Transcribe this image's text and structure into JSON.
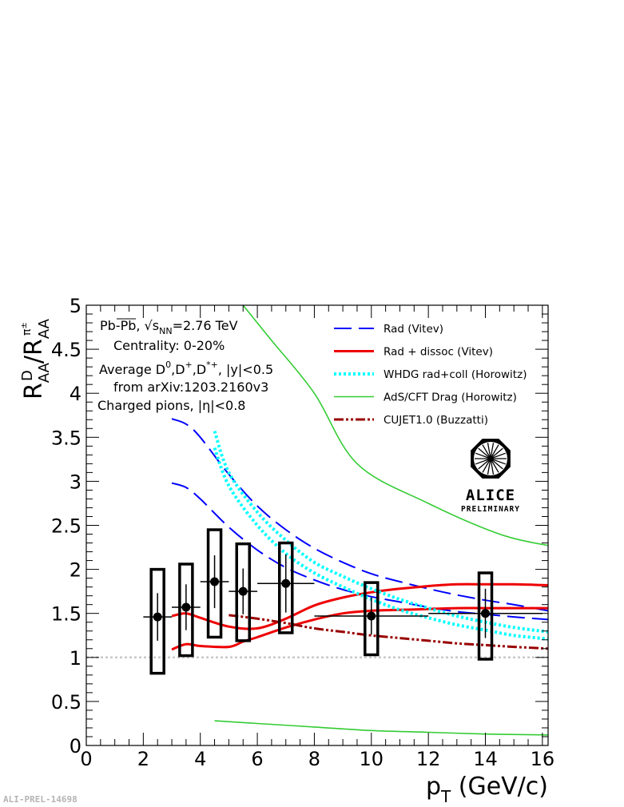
{
  "chart_data": {
    "type": "scatter",
    "xlabel": "p_T (GeV/c)",
    "xlabel_main": "p",
    "xlabel_sub": "T",
    "xlabel_unit": " (GeV/c)",
    "ylabel": "R_AA^D / R_AA^π±",
    "xlim": [
      0,
      16.2
    ],
    "ylim": [
      0,
      5
    ],
    "x_ticks": [
      0,
      2,
      4,
      6,
      8,
      10,
      12,
      14,
      16
    ],
    "y_ticks": [
      0,
      0.5,
      1,
      1.5,
      2,
      2.5,
      3,
      3.5,
      4,
      4.5,
      5
    ],
    "y_tick_labels": [
      "0",
      "0.5",
      "1",
      "1.5",
      "2",
      "2.5",
      "3",
      "3.5",
      "4",
      "4.5",
      "5"
    ],
    "reference_line": {
      "y": 1,
      "color": "#c8c8c8"
    },
    "info_lines": [
      "Pb-Pb, √s",
      "NN",
      "=2.76 TeV",
      "Centrality: 0-20%",
      "Average D",
      "0",
      ",D",
      "+",
      ",D",
      "*+",
      ", |y|<0.5",
      "from arXiv:1203.2160v3",
      "Charged pions, |η|<0.8"
    ],
    "data_points": {
      "name": "ALICE data",
      "points": [
        {
          "x": 2.5,
          "y": 1.46,
          "xerr": 0.5,
          "stat": 0.27,
          "sys_low": 0.82,
          "sys_high": 2.0
        },
        {
          "x": 3.5,
          "y": 1.57,
          "xerr": 0.5,
          "stat": 0.26,
          "sys_low": 1.02,
          "sys_high": 2.06
        },
        {
          "x": 4.5,
          "y": 1.86,
          "xerr": 0.5,
          "stat": 0.3,
          "sys_low": 1.23,
          "sys_high": 2.45
        },
        {
          "x": 5.5,
          "y": 1.75,
          "xerr": 0.5,
          "stat": 0.26,
          "sys_low": 1.19,
          "sys_high": 2.29
        },
        {
          "x": 7.0,
          "y": 1.84,
          "xerr": 1.0,
          "stat": 0.33,
          "sys_low": 1.28,
          "sys_high": 2.3
        },
        {
          "x": 10.0,
          "y": 1.47,
          "xerr": 2.0,
          "stat": 0.21,
          "sys_low": 1.03,
          "sys_high": 1.85
        },
        {
          "x": 14.0,
          "y": 1.5,
          "xerr": 2.0,
          "stat": 0.28,
          "sys_low": 0.98,
          "sys_high": 1.96
        }
      ]
    },
    "series": [
      {
        "name": "Rad (Vitev)",
        "color": "#0000ff",
        "style": "dashed",
        "curves": [
          [
            [
              3,
              3.71
            ],
            [
              3.5,
              3.65
            ],
            [
              4,
              3.5
            ],
            [
              5,
              3.08
            ],
            [
              6,
              2.72
            ],
            [
              7,
              2.45
            ],
            [
              8,
              2.24
            ],
            [
              9,
              2.08
            ],
            [
              10,
              1.95
            ],
            [
              11,
              1.86
            ],
            [
              12,
              1.78
            ],
            [
              13,
              1.71
            ],
            [
              14,
              1.65
            ],
            [
              15,
              1.6
            ],
            [
              16.2,
              1.53
            ]
          ],
          [
            [
              3,
              2.98
            ],
            [
              3.5,
              2.93
            ],
            [
              4,
              2.8
            ],
            [
              5,
              2.48
            ],
            [
              6,
              2.22
            ],
            [
              7,
              2.02
            ],
            [
              8,
              1.88
            ],
            [
              9,
              1.77
            ],
            [
              10,
              1.69
            ],
            [
              11,
              1.63
            ],
            [
              12,
              1.57
            ],
            [
              13,
              1.52
            ],
            [
              14,
              1.49
            ],
            [
              15,
              1.46
            ],
            [
              16.2,
              1.43
            ]
          ]
        ]
      },
      {
        "name": "Rad + dissoc (Vitev)",
        "color": "#ee0000",
        "style": "solid",
        "curves": [
          [
            [
              3,
              1.47
            ],
            [
              3.5,
              1.5
            ],
            [
              4,
              1.45
            ],
            [
              5,
              1.35
            ],
            [
              6,
              1.33
            ],
            [
              7,
              1.44
            ],
            [
              8,
              1.59
            ],
            [
              9,
              1.68
            ],
            [
              10,
              1.74
            ],
            [
              11,
              1.78
            ],
            [
              12,
              1.81
            ],
            [
              13,
              1.83
            ],
            [
              14,
              1.83
            ],
            [
              15,
              1.83
            ],
            [
              16.2,
              1.82
            ]
          ],
          [
            [
              3,
              1.09
            ],
            [
              3.5,
              1.15
            ],
            [
              4,
              1.13
            ],
            [
              5,
              1.12
            ],
            [
              5.5,
              1.18
            ],
            [
              6,
              1.23
            ],
            [
              7,
              1.34
            ],
            [
              8,
              1.43
            ],
            [
              9,
              1.5
            ],
            [
              10,
              1.53
            ],
            [
              11,
              1.54
            ],
            [
              12,
              1.55
            ],
            [
              13,
              1.56
            ],
            [
              14,
              1.56
            ],
            [
              16.2,
              1.56
            ]
          ]
        ]
      },
      {
        "name": "WHDG rad+coll (Horowitz)",
        "color": "#00ffff",
        "style": "dotted",
        "curves": [
          [
            [
              4.5,
              3.57
            ],
            [
              5,
              3.1
            ],
            [
              6,
              2.65
            ],
            [
              7,
              2.33
            ],
            [
              8,
              2.08
            ],
            [
              9,
              1.92
            ],
            [
              10,
              1.78
            ],
            [
              11,
              1.66
            ],
            [
              12,
              1.56
            ],
            [
              13,
              1.47
            ],
            [
              14,
              1.4
            ],
            [
              15,
              1.34
            ],
            [
              16.2,
              1.29
            ]
          ],
          [
            [
              4.5,
              3.38
            ],
            [
              5,
              2.95
            ],
            [
              6,
              2.5
            ],
            [
              7,
              2.18
            ],
            [
              8,
              1.96
            ],
            [
              9,
              1.8
            ],
            [
              10,
              1.66
            ],
            [
              11,
              1.54
            ],
            [
              12,
              1.45
            ],
            [
              13,
              1.37
            ],
            [
              14,
              1.31
            ],
            [
              15,
              1.25
            ],
            [
              16.2,
              1.21
            ]
          ]
        ]
      },
      {
        "name": "AdS/CFT Drag (Horowitz)",
        "color": "#33cc33",
        "style": "thin",
        "curves": [
          [
            [
              5.5,
              5.0
            ],
            [
              6.5,
              4.6
            ],
            [
              8,
              4.0
            ],
            [
              9.5,
              3.2
            ],
            [
              12,
              2.75
            ],
            [
              14.5,
              2.4
            ],
            [
              16.2,
              2.27
            ]
          ],
          [
            [
              4.5,
              0.28
            ],
            [
              6,
              0.25
            ],
            [
              8,
              0.21
            ],
            [
              10,
              0.17
            ],
            [
              12,
              0.15
            ],
            [
              14,
              0.13
            ],
            [
              16.2,
              0.12
            ]
          ]
        ]
      },
      {
        "name": "CUJET1.0 (Buzzatti)",
        "color": "#990000",
        "style": "dashdotdot",
        "curves": [
          [
            [
              5,
              1.48
            ],
            [
              6,
              1.44
            ],
            [
              7,
              1.39
            ],
            [
              8,
              1.33
            ],
            [
              9,
              1.29
            ],
            [
              10,
              1.25
            ],
            [
              11,
              1.22
            ],
            [
              12,
              1.19
            ],
            [
              13,
              1.16
            ],
            [
              14,
              1.14
            ],
            [
              15,
              1.12
            ],
            [
              16.2,
              1.1
            ]
          ]
        ]
      }
    ],
    "legend_position": "top-right",
    "logo": {
      "word": "ALICE",
      "sub": "PRELIMINARY"
    },
    "watermark": "ALI-PREL-14698"
  }
}
